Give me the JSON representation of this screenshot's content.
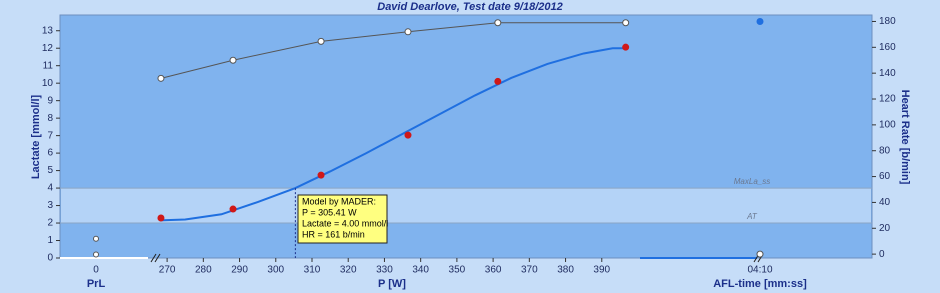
{
  "chart_data": {
    "type": "line",
    "title": "David Dearlove, Test date 9/18/2012",
    "xlabel": "P [W]",
    "prl_label": "PrL",
    "prl_tick": 0,
    "afl_label": "AFL-time [mm:ss]",
    "afl_tick": "04:10",
    "ylabel": "Lactate [mmol/l]",
    "y2label": "Heart Rate [b/min]",
    "xlim": [
      265,
      400
    ],
    "xticks": [
      270,
      280,
      290,
      300,
      310,
      320,
      330,
      340,
      350,
      360,
      370,
      380,
      390
    ],
    "ylim": [
      0,
      13.9
    ],
    "yticks": [
      0,
      1,
      2,
      3,
      4,
      5,
      6,
      7,
      8,
      9,
      10,
      11,
      12,
      13
    ],
    "y2lim": [
      -3,
      185
    ],
    "y2ticks": [
      0,
      20,
      40,
      60,
      80,
      100,
      120,
      140,
      160,
      180
    ],
    "series": [
      {
        "color": "#d01818",
        "x": [
          268.3,
          288.2,
          312.5,
          336.5,
          361.3,
          396.6
        ],
        "values": [
          2.29,
          2.8,
          4.74,
          7.03,
          10.1,
          12.06
        ]
      },
      {
        "color": "#555555",
        "axis": "y2",
        "x": [
          268.3,
          288.2,
          312.5,
          336.5,
          361.3,
          396.6
        ],
        "values": [
          136,
          150,
          164.6,
          172,
          179,
          179
        ]
      }
    ],
    "model_curve": {
      "color": "#1f6fe0",
      "x": [
        268,
        275,
        285,
        295,
        305.41,
        315,
        325,
        335,
        345,
        355,
        365,
        375,
        385,
        393,
        397
      ],
      "values": [
        2.15,
        2.2,
        2.5,
        3.2,
        4.0,
        4.95,
        6.0,
        7.1,
        8.2,
        9.3,
        10.3,
        11.1,
        11.7,
        12.0,
        12.0
      ]
    },
    "thresholds": [
      {
        "label": "MaxLa_ss",
        "value": 4
      },
      {
        "label": "AT",
        "value": 2
      }
    ],
    "annotation": {
      "x": 305.41,
      "lines": [
        "Model by MADER:",
        "P = 305.41 W",
        "Lactate = 4.00 mmol/l",
        "HR = 161 b/min"
      ]
    },
    "prl_values": [
      1.1,
      0.2
    ],
    "afl_values": [
      180,
      0
    ]
  }
}
